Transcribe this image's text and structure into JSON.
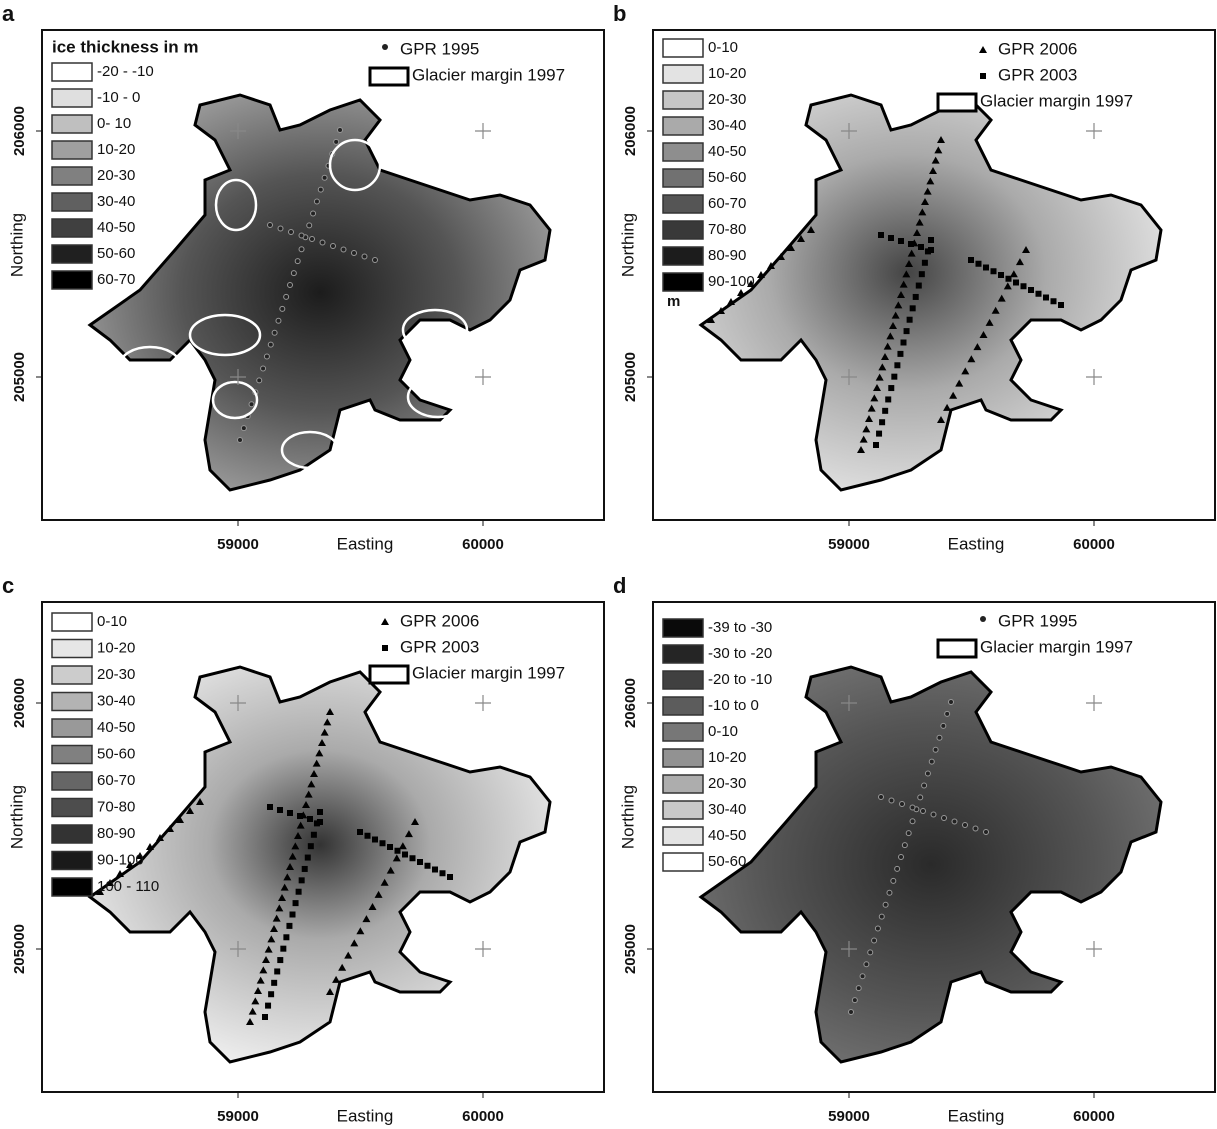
{
  "panels": [
    {
      "label": "a",
      "legend_title": "ice thickness in m",
      "legend": [
        "-20 - -10",
        "-10 - 0",
        "0- 10",
        "10-20",
        "20-30",
        "30-40",
        "40-50",
        "50-60",
        "60-70"
      ],
      "symbols": [
        "GPR 1995",
        "Glacier margin 1997"
      ],
      "x_axis_title": "Easting",
      "y_axis_title": "Northing",
      "x_ticks": [
        "59000",
        "60000"
      ],
      "y_ticks": [
        "206000",
        "205000"
      ]
    },
    {
      "label": "b",
      "legend": [
        "0-10",
        "10-20",
        "20-30",
        "30-40",
        "40-50",
        "50-60",
        "60-70",
        "70-80",
        "80-90",
        "90-100"
      ],
      "legend_unit": "m",
      "symbols": [
        "GPR 2006",
        "GPR 2003",
        "Glacier margin 1997"
      ],
      "x_axis_title": "Easting",
      "y_axis_title": "Northing",
      "x_ticks": [
        "59000",
        "60000"
      ],
      "y_ticks": [
        "206000",
        "205000"
      ]
    },
    {
      "label": "c",
      "legend": [
        "0-10",
        "10-20",
        "20-30",
        "30-40",
        "40-50",
        "50-60",
        "60-70",
        "70-80",
        "80-90",
        "90-100",
        "100 - 110"
      ],
      "symbols": [
        "GPR 2006",
        "GPR 2003",
        "Glacier margin 1997"
      ],
      "x_axis_title": "Easting",
      "y_axis_title": "Northing",
      "x_ticks": [
        "59000",
        "60000"
      ],
      "y_ticks": [
        "206000",
        "205000"
      ]
    },
    {
      "label": "d",
      "legend": [
        "-39 to -30",
        "-30 to -20",
        "-20 to -10",
        "-10 to 0",
        "0-10",
        "10-20",
        "20-30",
        "30-40",
        "40-50",
        "50-60"
      ],
      "symbols": [
        "GPR 1995",
        "Glacier margin 1997"
      ],
      "x_axis_title": "Easting",
      "y_axis_title": "Northing",
      "x_ticks": [
        "59000",
        "60000"
      ],
      "y_ticks": [
        "206000",
        "205000"
      ]
    }
  ]
}
